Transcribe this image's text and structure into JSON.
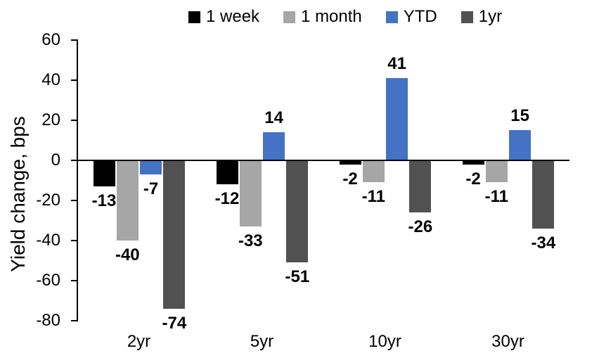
{
  "chart_data": {
    "type": "bar",
    "title": "",
    "xlabel": "",
    "ylabel": "Yield change, bps",
    "categories": [
      "2yr",
      "5yr",
      "10yr",
      "30yr"
    ],
    "series": [
      {
        "name": "1 week",
        "color": "#000000",
        "values": [
          -13,
          -12,
          -2,
          -2
        ]
      },
      {
        "name": "1 month",
        "color": "#A6A6A6",
        "values": [
          -40,
          -33,
          -11,
          -11
        ]
      },
      {
        "name": "YTD",
        "color": "#4472C4",
        "values": [
          -7,
          14,
          41,
          15
        ]
      },
      {
        "name": "1yr",
        "color": "#515151",
        "values": [
          -74,
          -51,
          -26,
          -34
        ]
      }
    ],
    "ylim": [
      -80,
      60
    ],
    "yticks": [
      60,
      40,
      20,
      0,
      -20,
      -40,
      -60,
      -80
    ],
    "ytick_step": 20,
    "grid": false,
    "legend_position": "top",
    "data_labels": "outside-end",
    "axis_color": "#000000",
    "background": "#ffffff"
  }
}
